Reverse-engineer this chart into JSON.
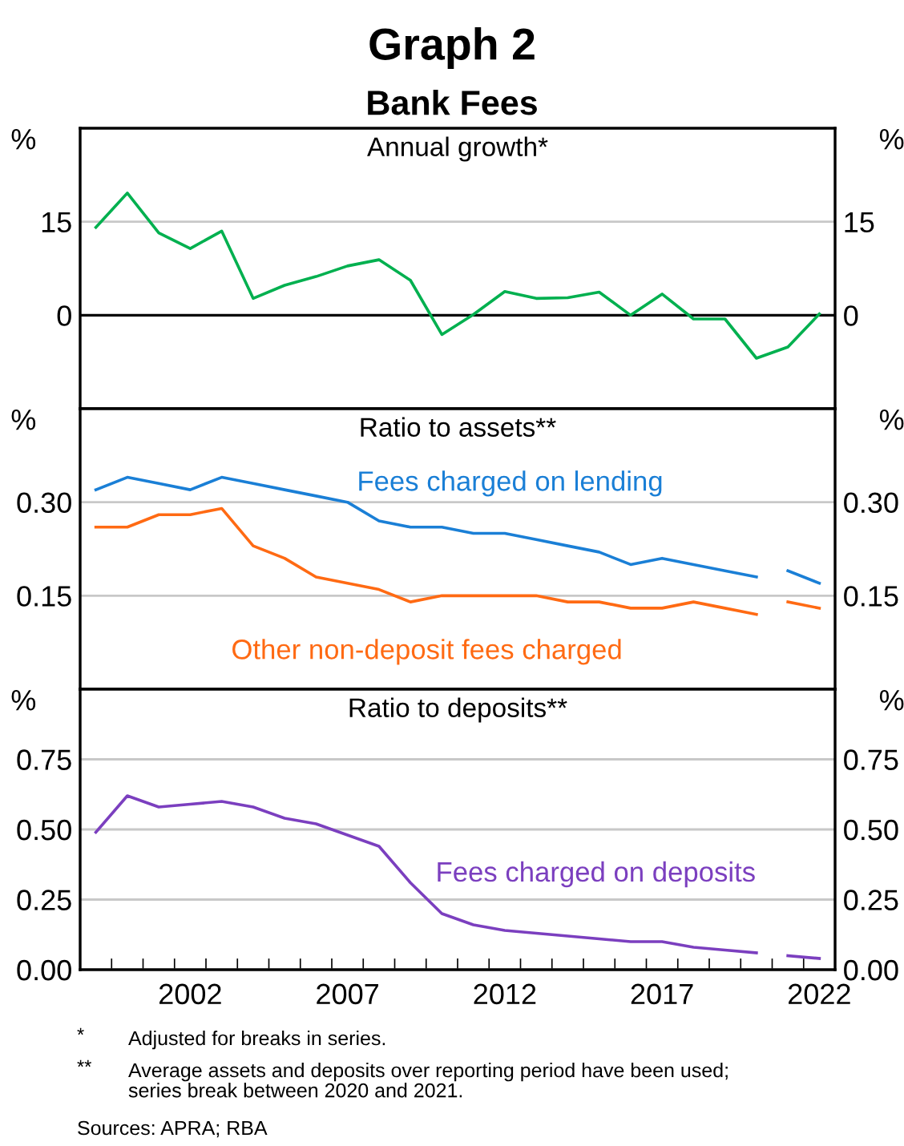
{
  "chart_data": [
    {
      "type": "line",
      "title": "Graph 2",
      "subtitle": "Bank Fees",
      "annotations": [
        "Annual growth*"
      ],
      "ylabel": "%",
      "y2label": "%",
      "x": [
        1999,
        2000,
        2001,
        2002,
        2003,
        2004,
        2005,
        2006,
        2007,
        2008,
        2009,
        2010,
        2011,
        2012,
        2013,
        2014,
        2015,
        2016,
        2017,
        2018,
        2019,
        2020,
        2021,
        2022
      ],
      "xlim": [
        1998.5,
        2022.5
      ],
      "ylim": [
        -15,
        30
      ],
      "yticks": [
        0,
        15
      ],
      "y2lim": [
        -15,
        30
      ],
      "y2ticks": [
        0,
        15
      ],
      "tick_labels": "y",
      "ref_lines": [
        {
          "axis": "y",
          "value": 0,
          "color": "#000000"
        },
        {
          "axis": "y",
          "value": 15,
          "color": "#c8c8c8"
        }
      ],
      "series": [
        {
          "color": "#00b04f",
          "values": [
            14.1,
            19.6,
            13.2,
            10.7,
            13.5,
            2.7,
            4.8,
            6.2,
            7.9,
            8.9,
            5.6,
            -3.1,
            0.1,
            3.8,
            2.7,
            2.8,
            3.7,
            0,
            3.4,
            -0.6,
            -0.6,
            -6.9,
            -5.1,
            0.2
          ]
        }
      ]
    },
    {
      "type": "line",
      "title": "Ratio to assets**",
      "ylabel": "%",
      "y2label": "%",
      "xlim": [
        1998.5,
        2022.5
      ],
      "ylim": [
        0,
        0.45
      ],
      "yticks": [
        {
          "value": 0.15,
          "label": "0.15"
        },
        {
          "value": 0.3,
          "label": "0.30"
        }
      ],
      "y2lim": [
        0,
        0.45
      ],
      "y2ticks": [
        {
          "value": 0.15,
          "label": "0.15"
        },
        {
          "value": 0.3,
          "label": "0.30"
        }
      ],
      "grid": "y",
      "tick_labels": "y",
      "series": [
        {
          "name": "Fees charged on lending",
          "color": "#1a7fd6",
          "x": [
            1999,
            2000,
            2001,
            2002,
            2003,
            2004,
            2005,
            2006,
            2007,
            2008,
            2009,
            2010,
            2011,
            2012,
            2013,
            2014,
            2015,
            2016,
            2017,
            2018,
            2019,
            2020
          ],
          "values": [
            0.32,
            0.34,
            0.33,
            0.32,
            0.34,
            0.33,
            0.32,
            0.31,
            0.3,
            0.27,
            0.26,
            0.26,
            0.25,
            0.25,
            0.24,
            0.23,
            0.22,
            0.2,
            0.21,
            0.2,
            0.19,
            0.18
          ]
        },
        {
          "color": "#1a7fd6",
          "x": [
            2021,
            2022
          ],
          "values": [
            0.19,
            0.17
          ]
        },
        {
          "name": "Other non-deposit fees charged",
          "color": "#ff6a13",
          "x": [
            1999,
            2000,
            2001,
            2002,
            2003,
            2004,
            2005,
            2006,
            2007,
            2008,
            2009,
            2010,
            2011,
            2012,
            2013,
            2014,
            2015,
            2016,
            2017,
            2018,
            2019,
            2020
          ],
          "values": [
            0.26,
            0.26,
            0.28,
            0.28,
            0.29,
            0.23,
            0.21,
            0.18,
            0.17,
            0.16,
            0.14,
            0.15,
            0.15,
            0.15,
            0.15,
            0.14,
            0.14,
            0.13,
            0.13,
            0.14,
            0.13,
            0.12
          ]
        },
        {
          "color": "#ff6a13",
          "x": [
            2021,
            2022
          ],
          "values": [
            0.14,
            0.13
          ]
        }
      ]
    },
    {
      "type": "line",
      "title": "Ratio to deposits**",
      "ylabel": "%",
      "y2label": "%",
      "xlim": [
        1998.5,
        2022.5
      ],
      "ylim": [
        0,
        1.0
      ],
      "xticks": [
        {
          "value": 1999.5,
          "label": null
        },
        {
          "value": 2000.5,
          "label": null
        },
        {
          "value": 2001.5,
          "label": null
        },
        {
          "value": 2002.5,
          "label": null
        },
        {
          "value": 2003.5,
          "label": null
        },
        {
          "value": 2004.5,
          "label": null
        },
        {
          "value": 2005.5,
          "label": null
        },
        {
          "value": 2006.5,
          "label": null
        },
        {
          "value": 2007.5,
          "label": null
        },
        {
          "value": 2008.5,
          "label": null
        },
        {
          "value": 2009.5,
          "label": null
        },
        {
          "value": 2010.5,
          "label": null
        },
        {
          "value": 2011.5,
          "label": null
        },
        {
          "value": 2012.5,
          "label": null
        },
        {
          "value": 2013.5,
          "label": null
        },
        {
          "value": 2014.5,
          "label": null
        },
        {
          "value": 2015.5,
          "label": null
        },
        {
          "value": 2016.5,
          "label": null
        },
        {
          "value": 2017.5,
          "label": null
        },
        {
          "value": 2018.5,
          "label": null
        },
        {
          "value": 2019.5,
          "label": null
        },
        {
          "value": 2020.5,
          "label": null
        },
        {
          "value": 2021.5,
          "label": null
        },
        2002,
        2007,
        2012,
        2017,
        2022
      ],
      "yticks": [
        {
          "value": 0,
          "label": "0.00"
        },
        {
          "value": 0.25,
          "label": "0.25"
        },
        {
          "value": 0.5,
          "label": "0.50"
        },
        {
          "value": 0.75,
          "label": "0.75"
        }
      ],
      "y2lim": [
        0,
        1.0
      ],
      "y2ticks": [
        {
          "value": 0,
          "label": "0.00"
        },
        {
          "value": 0.25,
          "label": "0.25"
        },
        {
          "value": 0.5,
          "label": "0.50"
        },
        {
          "value": 0.75,
          "label": "0.75"
        }
      ],
      "grid": "y",
      "annotations": [
        "*",
        "Adjusted for breaks in series.",
        "**",
        "Average assets and deposits over reporting period have been used;\nseries break between 2020 and 2021.",
        "Sources: APRA; RBA"
      ],
      "series": [
        {
          "name": "Fees charged on deposits",
          "color": "#7b3fbf",
          "x": [
            1999,
            2000,
            2001,
            2002,
            2003,
            2004,
            2005,
            2006,
            2007,
            2008,
            2009,
            2010,
            2011,
            2012,
            2013,
            2014,
            2015,
            2016,
            2017,
            2018,
            2019,
            2020
          ],
          "values": [
            0.49,
            0.62,
            0.58,
            0.59,
            0.6,
            0.58,
            0.54,
            0.52,
            0.48,
            0.44,
            0.31,
            0.2,
            0.16,
            0.14,
            0.13,
            0.12,
            0.11,
            0.1,
            0.1,
            0.08,
            0.07,
            0.06
          ]
        },
        {
          "color": "#7b3fbf",
          "x": [
            2021,
            2022
          ],
          "values": [
            0.05,
            0.04
          ]
        }
      ]
    }
  ]
}
